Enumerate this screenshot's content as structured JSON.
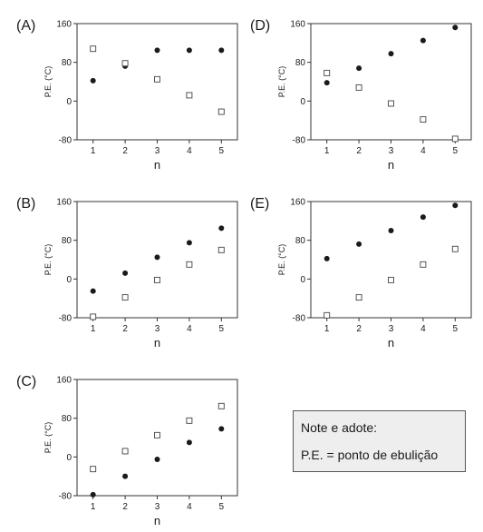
{
  "chart_data": [
    {
      "label": "(A)",
      "type": "scatter",
      "xlabel": "n",
      "ylabel": "P.E. (°C)",
      "x": [
        1,
        2,
        3,
        4,
        5
      ],
      "xticks": [
        "1",
        "2",
        "3",
        "4",
        "5"
      ],
      "yticks": [
        "160",
        "80",
        "0",
        "-80"
      ],
      "ylim": [
        -80,
        160
      ],
      "grid": false,
      "series": [
        {
          "marker": "filled-circle",
          "values": [
            42,
            72,
            105,
            105,
            105
          ]
        },
        {
          "marker": "open-square",
          "values": [
            108,
            78,
            45,
            12,
            -22
          ]
        }
      ]
    },
    {
      "label": "(D)",
      "type": "scatter",
      "xlabel": "n",
      "ylabel": "P.E. (°C)",
      "x": [
        1,
        2,
        3,
        4,
        5
      ],
      "xticks": [
        "1",
        "2",
        "3",
        "4",
        "5"
      ],
      "yticks": [
        "160",
        "80",
        "0",
        "-80"
      ],
      "ylim": [
        -80,
        160
      ],
      "grid": false,
      "series": [
        {
          "marker": "filled-circle",
          "values": [
            38,
            68,
            98,
            125,
            152
          ]
        },
        {
          "marker": "open-square",
          "values": [
            58,
            28,
            -5,
            -38,
            -78
          ]
        }
      ]
    },
    {
      "label": "(B)",
      "type": "scatter",
      "xlabel": "n",
      "ylabel": "P.E. (°C)",
      "x": [
        1,
        2,
        3,
        4,
        5
      ],
      "xticks": [
        "1",
        "2",
        "3",
        "4",
        "5"
      ],
      "yticks": [
        "160",
        "80",
        "0",
        "-80"
      ],
      "ylim": [
        -80,
        160
      ],
      "grid": false,
      "series": [
        {
          "marker": "filled-circle",
          "values": [
            -25,
            12,
            45,
            75,
            105
          ]
        },
        {
          "marker": "open-square",
          "values": [
            -78,
            -38,
            -2,
            30,
            60
          ]
        }
      ]
    },
    {
      "label": "(E)",
      "type": "scatter",
      "xlabel": "n",
      "ylabel": "P.E. (°C)",
      "x": [
        1,
        2,
        3,
        4,
        5
      ],
      "xticks": [
        "1",
        "2",
        "3",
        "4",
        "5"
      ],
      "yticks": [
        "160",
        "80",
        "0",
        "-80"
      ],
      "ylim": [
        -80,
        160
      ],
      "grid": false,
      "series": [
        {
          "marker": "filled-circle",
          "values": [
            42,
            72,
            100,
            128,
            152
          ]
        },
        {
          "marker": "open-square",
          "values": [
            -75,
            -38,
            -2,
            30,
            62
          ]
        }
      ]
    },
    {
      "label": "(C)",
      "type": "scatter",
      "xlabel": "n",
      "ylabel": "P.E. (°C)",
      "x": [
        1,
        2,
        3,
        4,
        5
      ],
      "xticks": [
        "1",
        "2",
        "3",
        "4",
        "5"
      ],
      "yticks": [
        "160",
        "80",
        "0",
        "-80"
      ],
      "ylim": [
        -80,
        160
      ],
      "grid": false,
      "series": [
        {
          "marker": "filled-circle",
          "values": [
            -78,
            -40,
            -5,
            30,
            58
          ]
        },
        {
          "marker": "open-square",
          "values": [
            -25,
            12,
            45,
            75,
            105
          ]
        }
      ]
    }
  ],
  "note": {
    "line1": "Note e adote:",
    "line2": "P.E. = ponto de ebulição"
  }
}
